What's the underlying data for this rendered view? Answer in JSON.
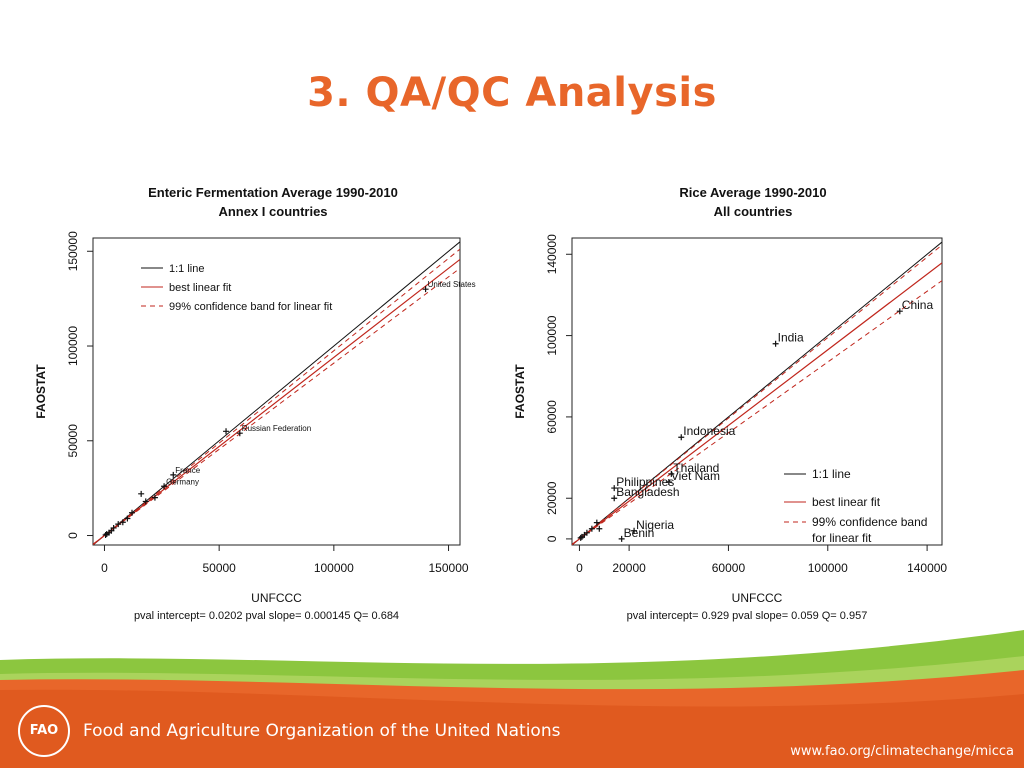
{
  "slide": {
    "title": "3. QA/QC Analysis",
    "footer_org": "Food and Agriculture Organization of the United Nations",
    "footer_url": "www.fao.org/climatechange/micca",
    "logo_text": "FAO",
    "accent_color": "#e8662a",
    "footer_green": "#8cc63f"
  },
  "chart_data": [
    {
      "type": "scatter",
      "title": "Enteric Fermentation Average 1990-2010",
      "subtitle": "Annex I countries",
      "xlabel": "UNFCCC",
      "ylabel": "FAOSTAT",
      "xlim": [
        -5000,
        155000
      ],
      "ylim": [
        -5000,
        157000
      ],
      "xticks": [
        0,
        50000,
        100000,
        150000
      ],
      "yticks": [
        0,
        50000,
        100000,
        150000
      ],
      "grid": false,
      "legend_position": "top-left",
      "legend": [
        "1:1 line",
        "best linear fit",
        "99% confidence band for linear fit"
      ],
      "stats": "pval intercept= 0.0202    pval slope= 0.000145 Q= 0.684",
      "fit": {
        "intercept": 0,
        "slope": 0.94
      },
      "band": {
        "lower_slope": 0.91,
        "upper_slope": 0.975
      },
      "points": [
        {
          "x": 140000,
          "y": 130000,
          "label": "United States"
        },
        {
          "x": 59000,
          "y": 54000,
          "label": "Russian Federation"
        },
        {
          "x": 53000,
          "y": 55000,
          "label": ""
        },
        {
          "x": 30000,
          "y": 32000,
          "label": "France"
        },
        {
          "x": 26000,
          "y": 26000,
          "label": "Germany"
        },
        {
          "x": 16000,
          "y": 22000,
          "label": ""
        },
        {
          "x": 18000,
          "y": 18000,
          "label": ""
        },
        {
          "x": 22000,
          "y": 20000,
          "label": ""
        },
        {
          "x": 12000,
          "y": 12000,
          "label": ""
        },
        {
          "x": 10000,
          "y": 9000,
          "label": ""
        },
        {
          "x": 8000,
          "y": 7000,
          "label": ""
        },
        {
          "x": 6000,
          "y": 6000,
          "label": ""
        },
        {
          "x": 4000,
          "y": 4000,
          "label": ""
        },
        {
          "x": 3000,
          "y": 2500,
          "label": ""
        },
        {
          "x": 2000,
          "y": 1500,
          "label": ""
        },
        {
          "x": 1000,
          "y": 800,
          "label": ""
        },
        {
          "x": 500,
          "y": 300,
          "label": ""
        }
      ]
    },
    {
      "type": "scatter",
      "title": "Rice Average 1990-2010",
      "subtitle": "All countries",
      "xlabel": "UNFCCC",
      "ylabel": "FAOSTAT",
      "xlim": [
        -3000,
        146000
      ],
      "ylim": [
        -3000,
        148000
      ],
      "xticks": [
        0,
        20000,
        60000,
        100000,
        140000
      ],
      "yticks": [
        0,
        20000,
        60000,
        100000,
        140000
      ],
      "grid": false,
      "legend_position": "bottom-right",
      "legend": [
        "1:1 line",
        "best linear fit",
        "99% confidence band",
        "for linear fit"
      ],
      "stats": "pval intercept= 0.929    pval slope= 0.059 Q= 0.957",
      "fit": {
        "intercept": 0,
        "slope": 0.93
      },
      "band": {
        "lower_slope": 0.87,
        "upper_slope": 0.99
      },
      "points": [
        {
          "x": 129000,
          "y": 112000,
          "label": "China"
        },
        {
          "x": 79000,
          "y": 96000,
          "label": "India"
        },
        {
          "x": 41000,
          "y": 50000,
          "label": "Indonesia"
        },
        {
          "x": 37000,
          "y": 32000,
          "label": "Thailand"
        },
        {
          "x": 36000,
          "y": 28000,
          "label": "Viet Nam"
        },
        {
          "x": 14000,
          "y": 25000,
          "label": "Philippines"
        },
        {
          "x": 14000,
          "y": 20000,
          "label": "Bangladesh"
        },
        {
          "x": 22000,
          "y": 4000,
          "label": "Nigeria"
        },
        {
          "x": 17000,
          "y": 0,
          "label": "Benin"
        },
        {
          "x": 7000,
          "y": 8000,
          "label": ""
        },
        {
          "x": 5000,
          "y": 5000,
          "label": ""
        },
        {
          "x": 3000,
          "y": 3000,
          "label": ""
        },
        {
          "x": 2000,
          "y": 2000,
          "label": ""
        },
        {
          "x": 1000,
          "y": 1000,
          "label": ""
        },
        {
          "x": 8000,
          "y": 5000,
          "label": ""
        },
        {
          "x": 500,
          "y": 500,
          "label": ""
        }
      ]
    }
  ]
}
